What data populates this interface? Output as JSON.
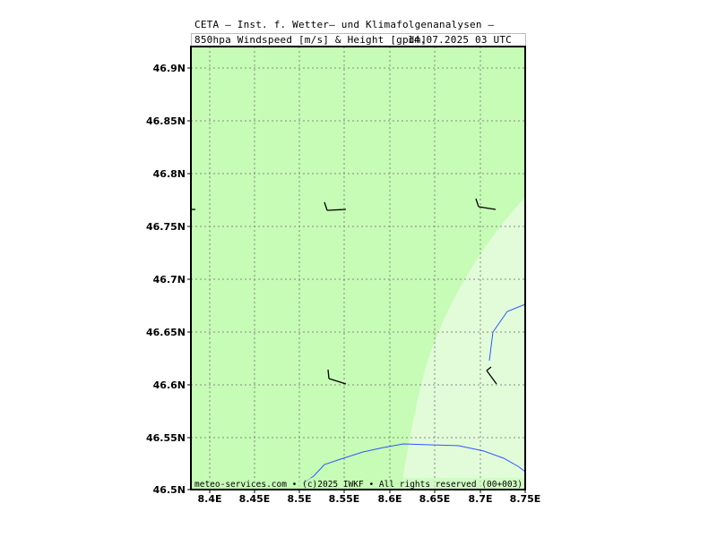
{
  "header": {
    "line1": "CETA — Inst. f. Wetter— und Klimafolgenanalysen —",
    "line2": "850hpa Windspeed [m/s] & Height [gpdm]",
    "valid_time": "14.07.2025 03 UTC"
  },
  "footer": "meteo-services.com • (c)2025 IWKF • All rights reserved (00+003)",
  "map": {
    "lon_range": [
      8.38,
      8.75
    ],
    "lat_range": [
      46.5,
      46.92
    ],
    "lon_ticks": [
      "8.4E",
      "8.45E",
      "8.5E",
      "8.55E",
      "8.6E",
      "8.65E",
      "8.7E",
      "8.75E"
    ],
    "lat_ticks": [
      "46.9N",
      "46.85N",
      "46.8N",
      "46.75N",
      "46.7N",
      "46.65N",
      "46.6N",
      "46.55N",
      "46.5N"
    ],
    "grid": true,
    "colors": {
      "wind_band_main": "#c6fcb5",
      "wind_band_low": "#e2fbd9",
      "grid": "#888888",
      "contour": "#2f55ff",
      "barb": "#000000"
    }
  }
}
